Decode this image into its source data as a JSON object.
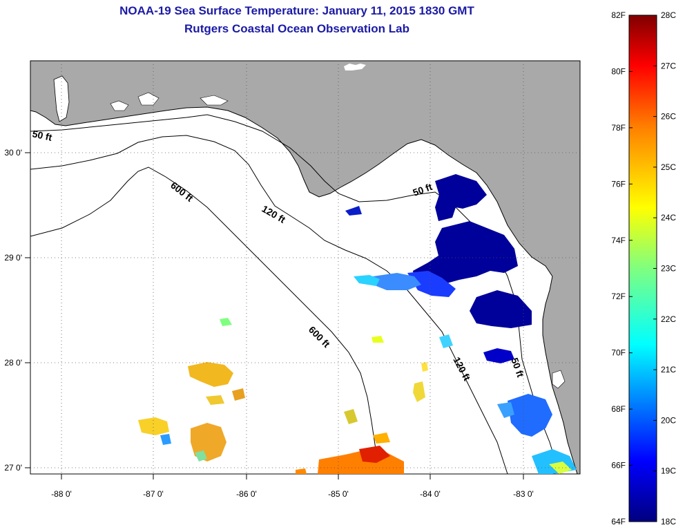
{
  "header": {
    "title": "NOAA-19 Sea Surface Temperature:  January 11, 2015 1830 GMT",
    "subtitle": "Rutgers Coastal Ocean Observation Lab"
  },
  "axes": {
    "lon_ticks": [
      "-88 0'",
      "-87 0'",
      "-86 0'",
      "-85 0'",
      "-84 0'",
      "-83 0'"
    ],
    "lat_ticks": [
      "30 0'",
      "29 0'",
      "28 0'",
      "27 0'"
    ]
  },
  "contours": {
    "c50_west": "50 ft",
    "c600_north": "600 ft",
    "c120_north": "120 ft",
    "c50_east": "50 ft",
    "c600_south": "600 ft",
    "c120_south": "120 ft",
    "c50_south": "50 ft"
  },
  "colorbar": {
    "fahrenheit": [
      "82F",
      "80F",
      "78F",
      "76F",
      "74F",
      "72F",
      "70F",
      "68F",
      "66F",
      "64F"
    ],
    "celsius": [
      "28C",
      "27C",
      "26C",
      "25C",
      "24C",
      "23C",
      "22C",
      "21C",
      "20C",
      "19C",
      "18C"
    ],
    "colors": [
      "#00007f",
      "#0000ff",
      "#007fff",
      "#00ffff",
      "#7fff7f",
      "#ffff00",
      "#ff7f00",
      "#ff0000",
      "#7f0000"
    ]
  },
  "colors": {
    "land": "#a9a9a9",
    "title": "#1a1aa6",
    "ocean": "#ffffff"
  }
}
